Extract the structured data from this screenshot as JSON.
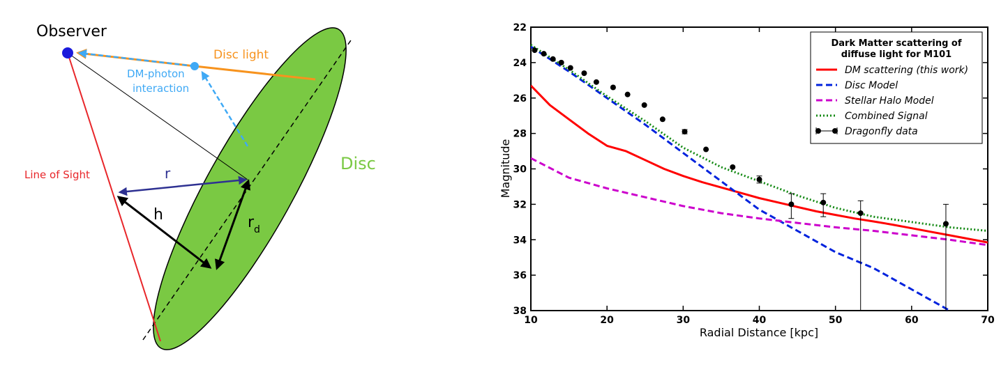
{
  "diagram": {
    "observer_label": "Observer",
    "disc_light_label": "Disc light",
    "interaction_label_line1": "DM-photon",
    "interaction_label_line2": "interaction",
    "disc_label": "Disc",
    "line_of_sight_label": "Line of Sight",
    "r_label": "r",
    "h_label": "h",
    "rd_label": "r",
    "rd_subscript": "d",
    "colors": {
      "disc_fill": "#7ac943",
      "observer": "#1a1adc",
      "disc_light": "#f7931e",
      "interaction": "#3fa9f5",
      "line_of_sight": "#e8262a",
      "r_arrow": "#2e3192",
      "disc_text": "#7ac943"
    }
  },
  "chart_data": {
    "type": "line",
    "title": "Dark Matter scattering of\ndiffuse light for M101",
    "title_lines": [
      "Dark Matter scattering of",
      "diffuse light for M101"
    ],
    "xlabel": "Radial Distance [kpc]",
    "ylabel": "Magnitude",
    "xlim": [
      10,
      70
    ],
    "ylim": [
      38,
      22
    ],
    "y_inverted": true,
    "x_ticks": [
      10,
      20,
      30,
      40,
      50,
      60,
      70
    ],
    "y_ticks": [
      22,
      24,
      26,
      28,
      30,
      32,
      34,
      36,
      38
    ],
    "grid": false,
    "legend_position": "top-right",
    "series": [
      {
        "name": "DM scattering (this work)",
        "style": "solid",
        "color": "#ff0000",
        "x": [
          10,
          12.5,
          15,
          17.5,
          20,
          22.5,
          25,
          27.5,
          30,
          32.5,
          35,
          37.5,
          40,
          42.5,
          45,
          47.5,
          50,
          52.5,
          55,
          57.5,
          60,
          62.5,
          65,
          67.5,
          70
        ],
        "y": [
          25.3,
          26.4,
          27.2,
          28.0,
          28.7,
          29.0,
          29.5,
          30.0,
          30.4,
          30.75,
          31.05,
          31.35,
          31.65,
          31.9,
          32.15,
          32.4,
          32.6,
          32.8,
          32.97,
          33.15,
          33.35,
          33.55,
          33.75,
          33.95,
          34.15
        ]
      },
      {
        "name": "Disc Model",
        "style": "dashed",
        "color": "#0022dd",
        "x": [
          10,
          15,
          20,
          25,
          30,
          35,
          40,
          45,
          50,
          55,
          60,
          65
        ],
        "y": [
          23.1,
          24.5,
          26.0,
          27.5,
          29.1,
          30.7,
          32.3,
          33.5,
          34.7,
          35.6,
          36.8,
          38.0
        ]
      },
      {
        "name": "Stellar Halo Model",
        "style": "dashed",
        "color": "#cc00cc",
        "x": [
          10,
          15,
          20,
          25,
          30,
          35,
          40,
          45,
          50,
          55,
          60,
          65,
          70
        ],
        "y": [
          29.4,
          30.5,
          31.1,
          31.6,
          32.1,
          32.5,
          32.8,
          33.05,
          33.3,
          33.5,
          33.75,
          34.0,
          34.3
        ]
      },
      {
        "name": "Combined Signal",
        "style": "dotted",
        "color": "#118811",
        "x": [
          10,
          15,
          20,
          25,
          30,
          35,
          40,
          45,
          50,
          55,
          60,
          65,
          70
        ],
        "y": [
          23.0,
          24.4,
          25.9,
          27.3,
          28.8,
          29.9,
          30.7,
          31.5,
          32.2,
          32.7,
          33.0,
          33.3,
          33.5
        ]
      }
    ],
    "points": {
      "name": "Dragonfly data",
      "color": "#000000",
      "x": [
        10.5,
        11.7,
        12.9,
        14.0,
        15.2,
        17.0,
        18.6,
        20.8,
        22.7,
        24.9,
        27.3,
        30.2,
        33.0,
        36.5,
        40.0,
        44.2,
        48.4,
        53.3,
        64.5
      ],
      "y": [
        23.3,
        23.5,
        23.8,
        24.0,
        24.3,
        24.6,
        25.1,
        25.4,
        25.8,
        26.4,
        27.2,
        27.9,
        28.9,
        29.9,
        30.6,
        32.0,
        31.9,
        32.5,
        33.1
      ],
      "yerr_lo": [
        0,
        0,
        0,
        0,
        0,
        0,
        0,
        0,
        0,
        0,
        0,
        0.12,
        0,
        0,
        0.2,
        0.8,
        0.8,
        5.5,
        4.9
      ],
      "yerr_hi": [
        0,
        0,
        0,
        0,
        0,
        0,
        0,
        0,
        0,
        0,
        0,
        0.12,
        0,
        0,
        0.2,
        0.6,
        0.5,
        0.7,
        1.1
      ]
    }
  }
}
